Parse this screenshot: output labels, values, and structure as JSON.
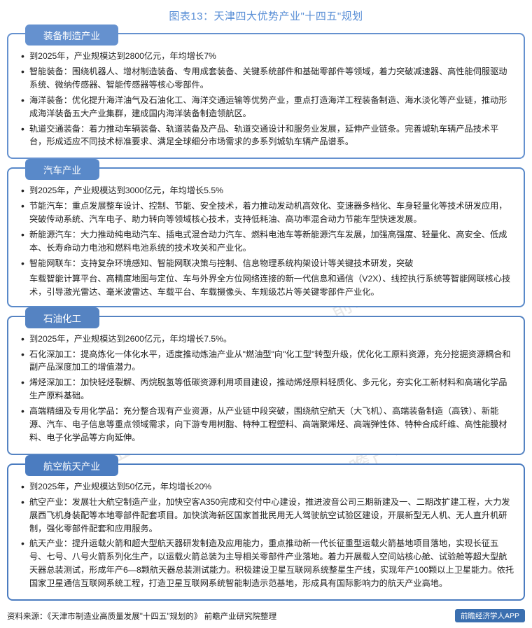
{
  "title_color": "#5a8fd6",
  "title": "图表13：天津四大优势产业\"十四五\"规划",
  "watermark_text": "前瞻产业研究院",
  "cards": [
    {
      "name": "装备制造产业",
      "color": "#6591cf",
      "items": [
        "到2025年，产业规模达到2800亿元，年均增长7%",
        "智能装备：围绕机器人、增材制造装备、专用成套装备、关键系统部件和基础零部件等领域，着力突破减速器、高性能伺服驱动系统、微纳传感器、智能传感器等核心零部件。",
        "海洋装备：优化提升海洋油气及石油化工、海洋交通运输等优势产业，重点打造海洋工程装备制造、海水淡化等产业链，推动形成海洋装备五大产业集群，建成国内海洋装备制造领航区。",
        "轨道交通装备：着力推动车辆装备、轨道装备及产品、轨道交通设计和服务业发展，延伸产业链条。完善城轨车辆产品技术平台，形成适应不同技术标准要求、满足全球细分市场需求的多系列城轨车辆产品谱系。"
      ]
    },
    {
      "name": "汽车产业",
      "color": "#5989c9",
      "items": [
        "到2025年，产业规模达到3000亿元，年均增长5.5%",
        "节能汽车：重点发展整车设计、控制、节能、安全技术，着力推动发动机高效化、变速器多档化、车身轻量化等技术研发应用，突破传动系统、汽车电子、助力转向等领域核心技术，支持低耗油、高功率混合动力节能车型快速发展。",
        "新能源汽车：大力推动纯电动汽车、插电式混合动力汽车、燃料电池车等新能源汽车发展，加强高强度、轻量化、高安全、低成本、长寿命动力电池和燃料电池系统的技术攻关和产业化。",
        "智能网联车：支持复杂环境感知、智能网联决策与控制、信息物理系统构架设计等关键技术研发，突破"
      ],
      "loose": "车载智能计算平台、高精度地图与定位、车与外界全方位网络连接的新一代信息和通信（V2X）、线控执行系统等智能网联核心技术，引导激光雷达、毫米波雷达、车载平台、车载摄像头、车规级芯片等关键零部件产业化。"
    },
    {
      "name": "石油化工",
      "color": "#5583c2",
      "items": [
        "到2025年，产业规模达到2600亿元，年均增长7.5%。",
        "石化深加工：提高炼化一体化水平，适度推动炼油产业从\"燃油型\"向\"化工型\"转型升级，优化化工原料资源，充分挖掘资源耦合和副产品深度加工的增值潜力。",
        "烯烃深加工：加快轻烃裂解、丙烷脱氢等低碳资源利用项目建设，推动烯烃原料轻质化、多元化，夯实化工新材料和高端化学品生产原料基础。",
        "高端精细及专用化学品：充分整合现有产业资源，从产业链中段突破，围绕航空航天（大飞机）、高端装备制造（高铁）、新能源、汽车、电子信息等重点领域需求，向下游专用树脂、特种工程塑料、高端聚烯烃、高端弹性体、特种合成纤维、高性能膜材料、电子化学品等方向延伸。"
      ]
    },
    {
      "name": "航空航天产业",
      "color": "#4b7cc0",
      "items": [
        "到2025年，产业规模达到50亿元，年均增长20%",
        "航空产业：发展壮大航空制造产业，加快空客A350完成和交付中心建设，推进波音公司三期新建及一、二期改扩建工程，大力发展西飞机身装配等本地零部件配套项目。加快滨海新区国家首批民用无人驾驶航空试验区建设，开展新型无人机、无人直升机研制，强化零部件配套和应用服务。",
        "航天产业：提升运载火箭和超大型航天器研发制造及应用能力，重点推动新一代长征重型运载火箭基地项目落地，实现长征五号、七号、八号火箭系列化生产，以运载火箭总装为主导相关零部件产业落地。着力开展载人空间站核心舱、试验舱等超大型航天器总装测试，形成年产6—8颗航天器总装测试能力。积极建设卫星互联网系统整星生产线，实现年产100颗以上卫星能力。依托国家卫星通信互联网系统工程，打造卫星互联网系统智能制造示范基地，形成具有国际影响力的航天产业高地。"
      ]
    }
  ],
  "footer_source": "资料来源：《天津市制造业高质量发展\"十四五\"规划的》 前瞻产业研究院整理",
  "footer_badge": "前瞻经济学人APP"
}
